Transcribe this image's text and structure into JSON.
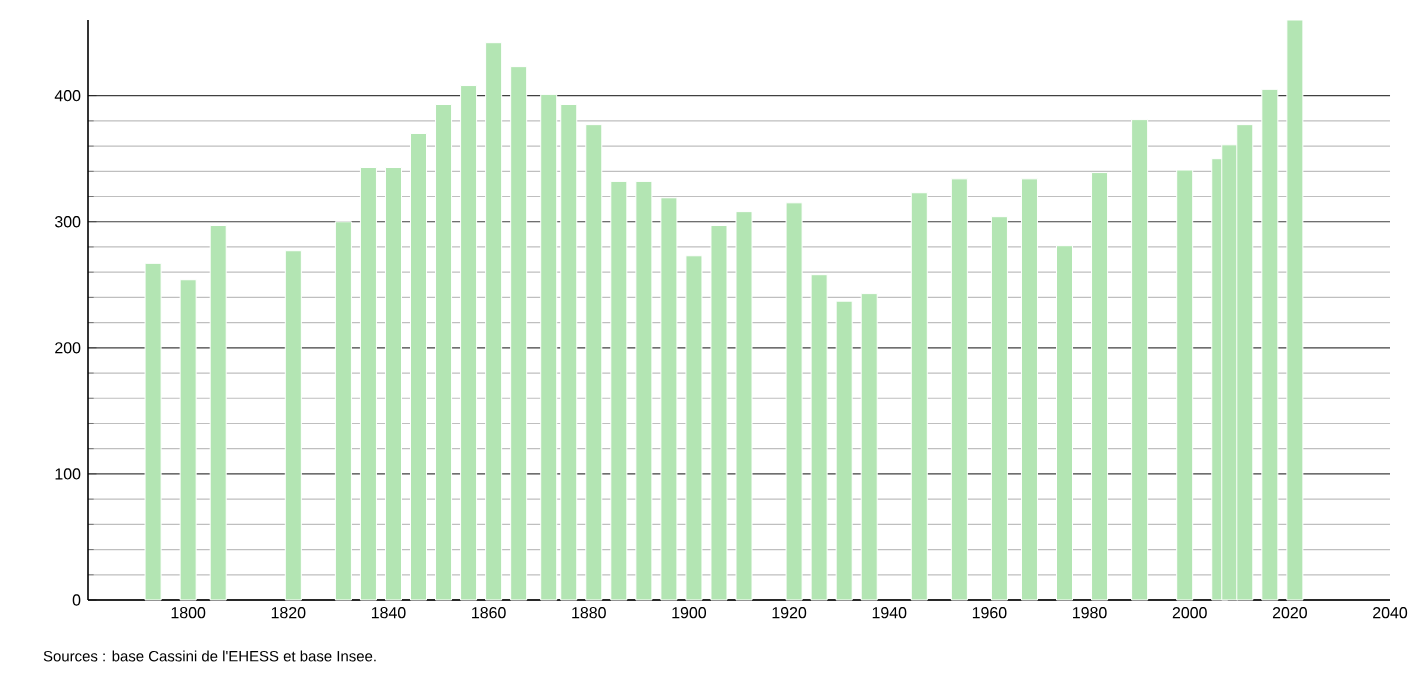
{
  "chart_data": {
    "type": "bar",
    "x": [
      1793,
      1800,
      1806,
      1821,
      1831,
      1836,
      1841,
      1846,
      1851,
      1856,
      1861,
      1866,
      1872,
      1876,
      1881,
      1886,
      1891,
      1896,
      1901,
      1906,
      1911,
      1921,
      1926,
      1931,
      1936,
      1946,
      1954,
      1962,
      1968,
      1975,
      1982,
      1990,
      1999,
      2006,
      2008,
      2011,
      2016,
      2021
    ],
    "values": [
      267,
      254,
      297,
      277,
      300,
      343,
      343,
      370,
      393,
      408,
      442,
      423,
      401,
      393,
      377,
      332,
      332,
      319,
      273,
      297,
      308,
      315,
      258,
      237,
      243,
      323,
      334,
      304,
      334,
      281,
      339,
      381,
      341,
      350,
      361,
      377,
      405,
      460
    ],
    "color": "#b3e5b3",
    "xlim": [
      1780,
      2040
    ],
    "ylim": [
      0,
      460
    ],
    "xticks": [
      1800,
      1820,
      1840,
      1860,
      1880,
      1900,
      1920,
      1940,
      1960,
      1980,
      2000,
      2020,
      2040
    ],
    "yticks": [
      0,
      100,
      200,
      300,
      400
    ],
    "grid": "y",
    "annotations": [
      "Sources : base Cassini de l'EHESS et base Insee."
    ]
  }
}
